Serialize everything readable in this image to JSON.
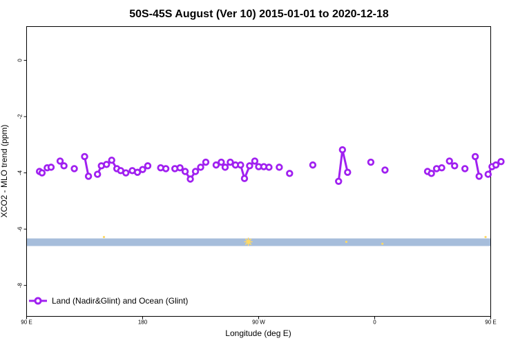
{
  "chart_data": {
    "type": "line",
    "title": "50S-45S August (Ver 10)   2015-01-01 to 2020-12-18",
    "xlabel": "Longitude (deg E)",
    "ylabel": "XCO2 - MLO trend (ppm)",
    "xlim": [
      90,
      450
    ],
    "ylim": [
      -9.1,
      1.2
    ],
    "x_ticks": [
      {
        "value": 90,
        "label": "90 E"
      },
      {
        "value": 180,
        "label": "180"
      },
      {
        "value": 270,
        "label": "90 W"
      },
      {
        "value": 360,
        "label": "0"
      },
      {
        "value": 450,
        "label": "90 E"
      },
      {
        "value": 540,
        "label": "180"
      }
    ],
    "y_ticks": [
      {
        "value": 0,
        "label": "0"
      },
      {
        "value": -2,
        "label": "-2"
      },
      {
        "value": -4,
        "label": "-4"
      },
      {
        "value": -6,
        "label": "-6"
      },
      {
        "value": -8,
        "label": "-8"
      }
    ],
    "grid": false,
    "legend": {
      "placement": "bottom-left"
    },
    "series": [
      {
        "name": "Land (Nadir&Glint) and Ocean (Glint)",
        "color": "#a020f0",
        "segments": [
          {
            "x": [
              100,
              102
            ],
            "y": [
              -3.95,
              -4.0
            ]
          },
          {
            "x": [
              106,
              109
            ],
            "y": [
              -3.82,
              -3.8
            ]
          },
          {
            "x": [
              116,
              119
            ],
            "y": [
              -3.58,
              -3.75
            ]
          },
          {
            "x": [
              127
            ],
            "y": [
              -3.85
            ]
          },
          {
            "x": [
              135,
              138
            ],
            "y": [
              -3.42,
              -4.12
            ]
          },
          {
            "x": [
              145,
              148,
              152,
              156,
              160,
              163,
              167,
              172,
              176,
              180,
              184
            ],
            "y": [
              -4.05,
              -3.75,
              -3.7,
              -3.55,
              -3.85,
              -3.92,
              -4.0,
              -3.92,
              -3.98,
              -3.88,
              -3.75
            ]
          },
          {
            "x": [
              194,
              198
            ],
            "y": [
              -3.82,
              -3.85
            ]
          },
          {
            "x": [
              205,
              209,
              213,
              217,
              221,
              225,
              229
            ],
            "y": [
              -3.85,
              -3.82,
              -3.95,
              -4.22,
              -3.95,
              -3.8,
              -3.62
            ]
          },
          {
            "x": [
              237,
              241,
              244,
              248,
              252,
              256,
              259,
              263,
              267,
              270,
              274,
              278
            ],
            "y": [
              -3.72,
              -3.62,
              -3.8,
              -3.62,
              -3.72,
              -3.72,
              -4.2,
              -3.75,
              -3.58,
              -3.78,
              -3.78,
              -3.8
            ]
          },
          {
            "x": [
              286
            ],
            "y": [
              -3.8
            ]
          },
          {
            "x": [
              294
            ],
            "y": [
              -4.02
            ]
          },
          {
            "x": [
              312
            ],
            "y": [
              -3.72
            ]
          },
          {
            "x": [
              332,
              335,
              339
            ],
            "y": [
              -4.3,
              -3.18,
              -3.98
            ]
          },
          {
            "x": [
              357
            ],
            "y": [
              -3.62
            ]
          },
          {
            "x": [
              368
            ],
            "y": [
              -3.9
            ]
          },
          {
            "x": [
              401,
              404
            ],
            "y": [
              -3.95,
              -4.02
            ]
          },
          {
            "x": [
              408,
              412
            ],
            "y": [
              -3.85,
              -3.82
            ]
          },
          {
            "x": [
              418,
              422
            ],
            "y": [
              -3.58,
              -3.75
            ]
          },
          {
            "x": [
              430
            ],
            "y": [
              -3.85
            ]
          },
          {
            "x": [
              438,
              441
            ],
            "y": [
              -3.42,
              -4.12
            ]
          },
          {
            "x": [
              448,
              451,
              454,
              458
            ],
            "y": [
              -4.05,
              -3.78,
              -3.72,
              -3.6
            ]
          }
        ]
      }
    ],
    "background_band": {
      "y_range": [
        -6.33,
        -6.6
      ],
      "color": "#a6bddb"
    },
    "markers": {
      "color": "#ffd966",
      "points": [
        {
          "x": 150,
          "y": -6.28,
          "size": 1
        },
        {
          "x": 262,
          "y": -6.45,
          "size": 3
        },
        {
          "x": 338,
          "y": -6.45,
          "size": 1
        },
        {
          "x": 366,
          "y": -6.52,
          "size": 1
        },
        {
          "x": 446,
          "y": -6.28,
          "size": 1
        }
      ]
    }
  }
}
